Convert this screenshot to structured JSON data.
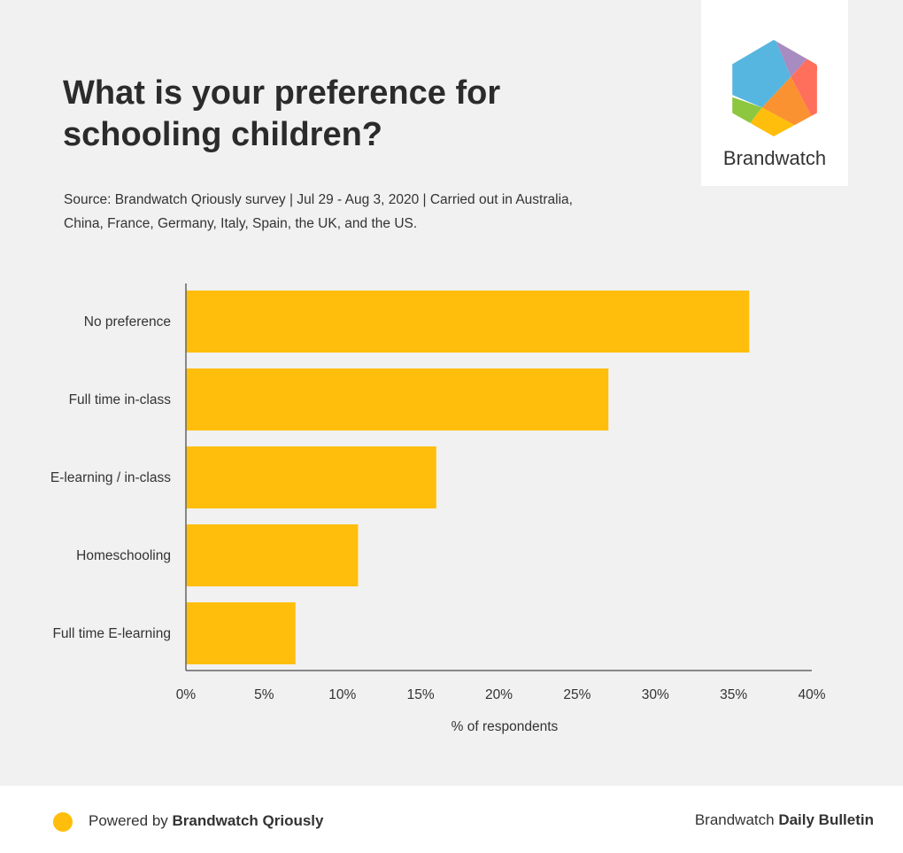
{
  "header": {
    "title": "What is your preference for schooling children?",
    "source": "Source: Brandwatch Qriously survey | Jul 29 - Aug 3, 2020 | Carried out in Australia, China, France, Germany, Italy, Spain, the UK, and the US.",
    "logo_text": "Brandwatch"
  },
  "chart_data": {
    "type": "bar",
    "orientation": "horizontal",
    "categories": [
      "No preference",
      "Full time in-class",
      "E-learning / in-class",
      "Homeschooling",
      "Full time E-learning"
    ],
    "values": [
      36,
      27,
      16,
      11,
      7
    ],
    "xlabel": "% of respondents",
    "ylabel": "",
    "xlim": [
      0,
      40
    ],
    "ticks": [
      "0%",
      "5%",
      "10%",
      "15%",
      "20%",
      "25%",
      "30%",
      "35%",
      "40%"
    ],
    "tick_values": [
      0,
      5,
      10,
      15,
      20,
      25,
      30,
      35,
      40
    ],
    "bar_color": "#ffbe0b",
    "grid": false
  },
  "footer": {
    "powered_prefix": "Powered by ",
    "powered_brand": "Brandwatch Qriously",
    "bulletin_prefix": "Brandwatch ",
    "bulletin_bold": "Daily Bulletin",
    "dot_color": "#ffbe0b"
  }
}
